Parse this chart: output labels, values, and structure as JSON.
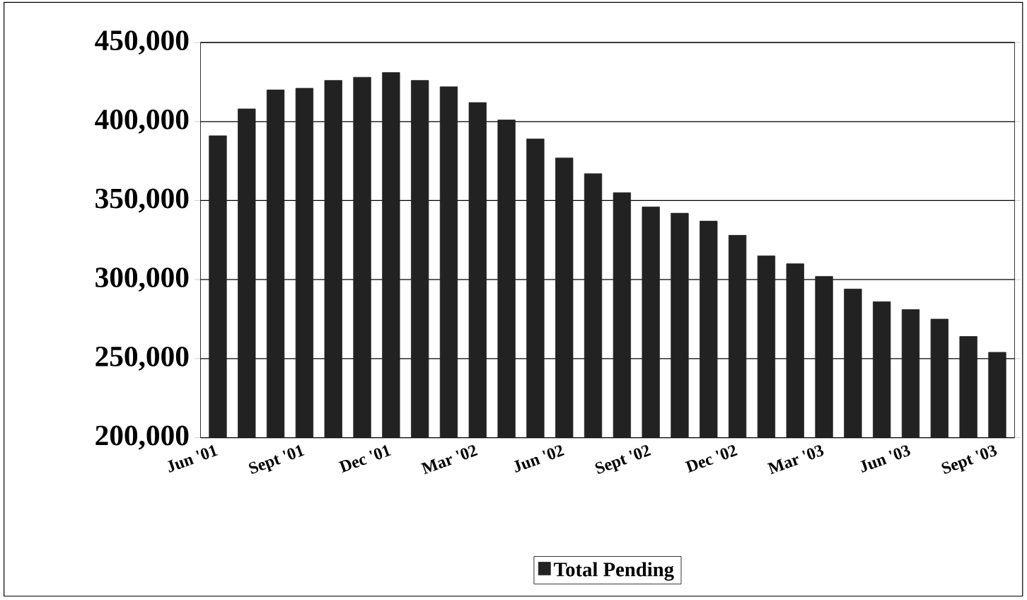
{
  "chart_data": {
    "type": "bar",
    "categories": [
      "Jun '01",
      null,
      null,
      "Sept '01",
      null,
      null,
      "Dec '01",
      null,
      null,
      "Mar '02",
      null,
      null,
      "Jun '02",
      null,
      null,
      "Sept '02",
      null,
      null,
      "Dec '02",
      null,
      null,
      "Mar '03",
      null,
      null,
      "Jun '03",
      null,
      null,
      "Sept '03"
    ],
    "series": [
      {
        "name": "Total Pending",
        "color": "#222222",
        "values": [
          391000,
          408000,
          420000,
          421000,
          426000,
          428000,
          431000,
          426000,
          422000,
          412000,
          401000,
          389000,
          377000,
          367000,
          355000,
          346000,
          342000,
          337000,
          328000,
          315000,
          310000,
          302000,
          294000,
          286000,
          281000,
          275000,
          264000,
          254000
        ]
      }
    ],
    "ylim": [
      200000,
      450000
    ],
    "yticks": [
      {
        "value": 200000,
        "label": "200,000"
      },
      {
        "value": 250000,
        "label": "250,000"
      },
      {
        "value": 300000,
        "label": "300,000"
      },
      {
        "value": 350000,
        "label": "350,000"
      },
      {
        "value": 400000,
        "label": "400,000"
      },
      {
        "value": 450000,
        "label": "450,000"
      }
    ],
    "grid": "y",
    "legend": "bottom"
  }
}
